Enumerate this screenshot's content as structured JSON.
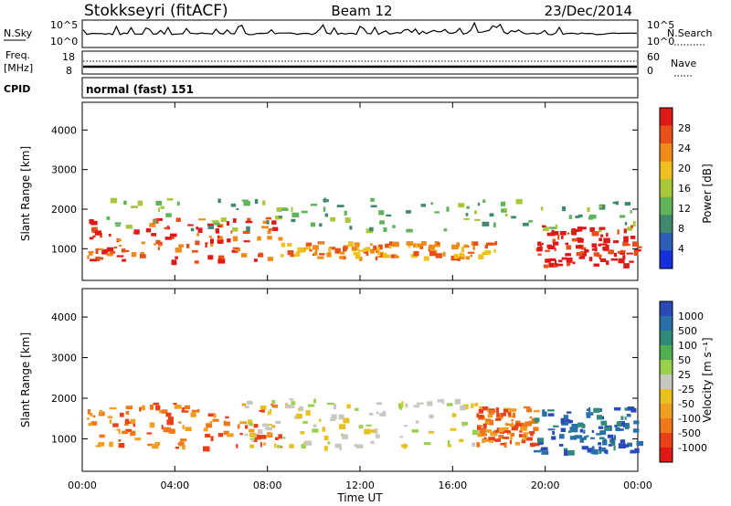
{
  "header": {
    "station": "Stokkseyri (fitACF)",
    "beam": "Beam 12",
    "date": "23/Dec/2014"
  },
  "strips": {
    "nsky_label": "N.Sky",
    "nsky_ticks": [
      "10^5",
      "10^0"
    ],
    "nsearch_label": "N.Search",
    "freq_label_1": "Freq.",
    "freq_label_2": "[MHz]",
    "freq_ticks": [
      "18",
      "8"
    ],
    "nave_ticks": [
      "60",
      "0"
    ],
    "nave_label": "Nave",
    "cpid_label": "CPID",
    "cpid_value": "normal (fast) 151"
  },
  "chart_data": [
    {
      "type": "heatmap",
      "panel": "power",
      "ylabel": "Slant Range [km]",
      "xlabel": "Time UT",
      "x_ticks": [
        "00:00",
        "04:00",
        "08:00",
        "12:00",
        "16:00",
        "20:00",
        "00:00"
      ],
      "x_range_hours": [
        0,
        24
      ],
      "y_ticks": [
        1000,
        2000,
        3000,
        4000
      ],
      "ylim": [
        200,
        4700
      ],
      "colorbar_label": "Power [dB]",
      "colorbar_ticks": [
        "4",
        "8",
        "12",
        "16",
        "20",
        "24",
        "28"
      ],
      "colorbar_colors": [
        "#1530d8",
        "#2d5db8",
        "#3f8a6e",
        "#5fb45a",
        "#a8c83a",
        "#f0c020",
        "#f08a18",
        "#e8501a",
        "#e01818"
      ],
      "echo_bands": [
        {
          "t_start": 0.2,
          "t_end": 8.5,
          "r_low": 700,
          "r_high": 1800,
          "level": 7
        },
        {
          "t_start": 1.0,
          "t_end": 24.0,
          "r_low": 1500,
          "r_high": 2300,
          "level": 3
        },
        {
          "t_start": 8.5,
          "t_end": 18.0,
          "r_low": 800,
          "r_high": 1200,
          "level": 6
        },
        {
          "t_start": 19.5,
          "t_end": 24.0,
          "r_low": 600,
          "r_high": 1600,
          "level": 8
        }
      ]
    },
    {
      "type": "heatmap",
      "panel": "velocity",
      "ylabel": "Slant Range [km]",
      "xlabel": "Time UT",
      "x_ticks": [
        "00:00",
        "04:00",
        "08:00",
        "12:00",
        "16:00",
        "20:00",
        "00:00"
      ],
      "x_range_hours": [
        0,
        24
      ],
      "y_ticks": [
        1000,
        2000,
        3000,
        4000
      ],
      "ylim": [
        200,
        4700
      ],
      "colorbar_label": "Velocity [m s⁻¹]",
      "colorbar_ticks": [
        "1000",
        "500",
        "100",
        "50",
        "25",
        "-25",
        "-50",
        "-100",
        "-500",
        "-1000"
      ],
      "colorbar_colors": [
        "#2a4ab8",
        "#2a70a8",
        "#2f8a7a",
        "#50b050",
        "#9ad04a",
        "#c8c8c0",
        "#e8c020",
        "#f0a020",
        "#f07818",
        "#e84018",
        "#e01818"
      ],
      "echo_bands": [
        {
          "t_start": 0.2,
          "t_end": 8.5,
          "r_low": 800,
          "r_high": 1900,
          "level": 8
        },
        {
          "t_start": 7.0,
          "t_end": 17.0,
          "r_low": 800,
          "r_high": 2000,
          "level": 5
        },
        {
          "t_start": 17.0,
          "t_end": 19.5,
          "r_low": 900,
          "r_high": 1800,
          "level": 8
        },
        {
          "t_start": 19.5,
          "t_end": 24.0,
          "r_low": 700,
          "r_high": 1800,
          "level": 1
        }
      ]
    }
  ]
}
